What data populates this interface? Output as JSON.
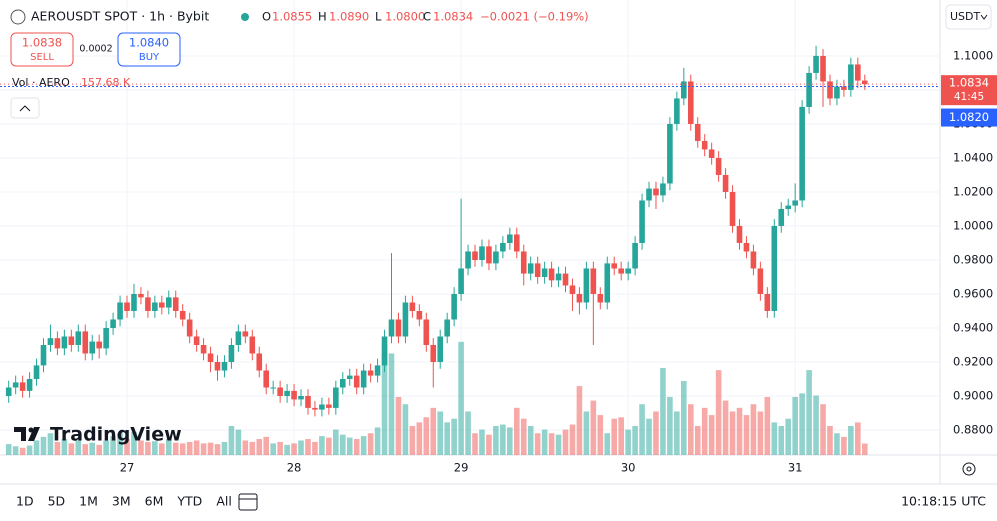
{
  "header": {
    "symbol": "AEROUSDT SPOT · 1h · Bybit",
    "o_label": "O",
    "o": "1.0855",
    "h_label": "H",
    "h": "1.0890",
    "l_label": "L",
    "l": "1.0800",
    "c_label": "C",
    "c": "1.0834",
    "change": "−0.0021 (−0.19%)",
    "sell_price": "1.0838",
    "sell": "SELL",
    "spread": "0.0002",
    "buy_price": "1.0840",
    "buy": "BUY",
    "currency": "USDT",
    "vol_label": "Vol · AERO",
    "vol_value": "157.68 K",
    "logo": "TradingView"
  },
  "chart_data": {
    "type": "candlestick",
    "up_color": "#26a69a",
    "down_color": "#ef5350",
    "ylim": [
      0.8653,
      1.1329
    ],
    "yticks": [
      {
        "value": 1.1,
        "label": "1.1000"
      },
      {
        "value": 1.08,
        "label": "1.0800"
      },
      {
        "value": 1.06,
        "label": "1.0600"
      },
      {
        "value": 1.04,
        "label": "1.0400"
      },
      {
        "value": 1.02,
        "label": "1.0200"
      },
      {
        "value": 1.0,
        "label": "1.0000"
      },
      {
        "value": 0.98,
        "label": "0.9800"
      },
      {
        "value": 0.96,
        "label": "0.9600"
      },
      {
        "value": 0.94,
        "label": "0.9400"
      },
      {
        "value": 0.92,
        "label": "0.9200"
      },
      {
        "value": 0.9,
        "label": "0.9000"
      },
      {
        "value": 0.88,
        "label": "0.8800"
      }
    ],
    "xticks": [
      {
        "value": 17,
        "label": "27"
      },
      {
        "value": 41,
        "label": "28"
      },
      {
        "value": 65,
        "label": "29"
      },
      {
        "value": 89,
        "label": "30"
      },
      {
        "value": 113,
        "label": "31"
      }
    ],
    "grid": true,
    "ohlc": [
      [
        0.9,
        0.909,
        0.896,
        0.905
      ],
      [
        0.905,
        0.912,
        0.901,
        0.908
      ],
      [
        0.908,
        0.912,
        0.899,
        0.903
      ],
      [
        0.903,
        0.914,
        0.899,
        0.91
      ],
      [
        0.91,
        0.922,
        0.906,
        0.918
      ],
      [
        0.918,
        0.934,
        0.914,
        0.93
      ],
      [
        0.93,
        0.942,
        0.926,
        0.934
      ],
      [
        0.934,
        0.938,
        0.924,
        0.928
      ],
      [
        0.928,
        0.939,
        0.924,
        0.935
      ],
      [
        0.935,
        0.939,
        0.926,
        0.93
      ],
      [
        0.93,
        0.942,
        0.926,
        0.938
      ],
      [
        0.938,
        0.942,
        0.921,
        0.925
      ],
      [
        0.925,
        0.936,
        0.921,
        0.932
      ],
      [
        0.932,
        0.936,
        0.922,
        0.928
      ],
      [
        0.928,
        0.944,
        0.924,
        0.94
      ],
      [
        0.94,
        0.949,
        0.936,
        0.945
      ],
      [
        0.945,
        0.959,
        0.941,
        0.955
      ],
      [
        0.955,
        0.959,
        0.946,
        0.95
      ],
      [
        0.95,
        0.966,
        0.946,
        0.96
      ],
      [
        0.96,
        0.964,
        0.954,
        0.958
      ],
      [
        0.958,
        0.962,
        0.946,
        0.95
      ],
      [
        0.95,
        0.959,
        0.946,
        0.955
      ],
      [
        0.955,
        0.959,
        0.948,
        0.952
      ],
      [
        0.952,
        0.962,
        0.948,
        0.958
      ],
      [
        0.958,
        0.962,
        0.946,
        0.95
      ],
      [
        0.95,
        0.954,
        0.941,
        0.945
      ],
      [
        0.945,
        0.949,
        0.931,
        0.935
      ],
      [
        0.935,
        0.939,
        0.926,
        0.93
      ],
      [
        0.93,
        0.934,
        0.921,
        0.925
      ],
      [
        0.925,
        0.929,
        0.914,
        0.92
      ],
      [
        0.92,
        0.924,
        0.909,
        0.915
      ],
      [
        0.915,
        0.924,
        0.911,
        0.92
      ],
      [
        0.92,
        0.934,
        0.916,
        0.93
      ],
      [
        0.93,
        0.942,
        0.926,
        0.938
      ],
      [
        0.938,
        0.942,
        0.931,
        0.935
      ],
      [
        0.935,
        0.939,
        0.921,
        0.925
      ],
      [
        0.925,
        0.929,
        0.911,
        0.915
      ],
      [
        0.915,
        0.919,
        0.901,
        0.905
      ],
      [
        0.905,
        0.909,
        0.901,
        0.905
      ],
      [
        0.905,
        0.909,
        0.896,
        0.9
      ],
      [
        0.9,
        0.907,
        0.896,
        0.903
      ],
      [
        0.903,
        0.907,
        0.894,
        0.898
      ],
      [
        0.898,
        0.904,
        0.894,
        0.9
      ],
      [
        0.9,
        0.904,
        0.889,
        0.893
      ],
      [
        0.893,
        0.897,
        0.888,
        0.892
      ],
      [
        0.892,
        0.899,
        0.888,
        0.895
      ],
      [
        0.895,
        0.899,
        0.889,
        0.893
      ],
      [
        0.893,
        0.909,
        0.889,
        0.905
      ],
      [
        0.905,
        0.914,
        0.901,
        0.91
      ],
      [
        0.91,
        0.916,
        0.906,
        0.912
      ],
      [
        0.912,
        0.916,
        0.901,
        0.905
      ],
      [
        0.905,
        0.919,
        0.901,
        0.915
      ],
      [
        0.915,
        0.919,
        0.908,
        0.912
      ],
      [
        0.912,
        0.922,
        0.908,
        0.918
      ],
      [
        0.918,
        0.939,
        0.914,
        0.935
      ],
      [
        0.935,
        0.984,
        0.931,
        0.945
      ],
      [
        0.945,
        0.949,
        0.931,
        0.935
      ],
      [
        0.935,
        0.959,
        0.931,
        0.955
      ],
      [
        0.955,
        0.959,
        0.946,
        0.95
      ],
      [
        0.95,
        0.954,
        0.941,
        0.945
      ],
      [
        0.945,
        0.949,
        0.926,
        0.93
      ],
      [
        0.93,
        0.934,
        0.905,
        0.92
      ],
      [
        0.92,
        0.939,
        0.916,
        0.935
      ],
      [
        0.935,
        0.949,
        0.931,
        0.945
      ],
      [
        0.945,
        0.964,
        0.941,
        0.96
      ],
      [
        0.96,
        1.016,
        0.956,
        0.975
      ],
      [
        0.975,
        0.989,
        0.971,
        0.985
      ],
      [
        0.985,
        0.989,
        0.976,
        0.98
      ],
      [
        0.98,
        0.992,
        0.976,
        0.988
      ],
      [
        0.988,
        0.992,
        0.974,
        0.978
      ],
      [
        0.978,
        0.989,
        0.974,
        0.985
      ],
      [
        0.985,
        0.994,
        0.981,
        0.99
      ],
      [
        0.99,
        0.999,
        0.986,
        0.995
      ],
      [
        0.995,
        0.999,
        0.981,
        0.985
      ],
      [
        0.985,
        0.989,
        0.965,
        0.972
      ],
      [
        0.972,
        0.982,
        0.968,
        0.978
      ],
      [
        0.978,
        0.982,
        0.966,
        0.97
      ],
      [
        0.97,
        0.979,
        0.966,
        0.975
      ],
      [
        0.975,
        0.979,
        0.964,
        0.968
      ],
      [
        0.968,
        0.976,
        0.964,
        0.972
      ],
      [
        0.972,
        0.976,
        0.961,
        0.965
      ],
      [
        0.965,
        0.969,
        0.95,
        0.96
      ],
      [
        0.96,
        0.964,
        0.948,
        0.955
      ],
      [
        0.955,
        0.979,
        0.951,
        0.975
      ],
      [
        0.975,
        0.979,
        0.93,
        0.96
      ],
      [
        0.96,
        0.964,
        0.951,
        0.955
      ],
      [
        0.955,
        0.982,
        0.951,
        0.978
      ],
      [
        0.978,
        0.982,
        0.971,
        0.975
      ],
      [
        0.975,
        0.979,
        0.968,
        0.972
      ],
      [
        0.972,
        0.979,
        0.968,
        0.975
      ],
      [
        0.975,
        0.994,
        0.971,
        0.99
      ],
      [
        0.99,
        1.019,
        0.986,
        1.015
      ],
      [
        1.015,
        1.026,
        1.011,
        1.022
      ],
      [
        1.022,
        1.026,
        1.01,
        1.018
      ],
      [
        1.018,
        1.029,
        1.014,
        1.025
      ],
      [
        1.025,
        1.064,
        1.021,
        1.06
      ],
      [
        1.06,
        1.079,
        1.056,
        1.075
      ],
      [
        1.075,
        1.093,
        1.071,
        1.085
      ],
      [
        1.085,
        1.089,
        1.056,
        1.06
      ],
      [
        1.06,
        1.064,
        1.046,
        1.05
      ],
      [
        1.05,
        1.054,
        1.041,
        1.045
      ],
      [
        1.045,
        1.049,
        1.036,
        1.04
      ],
      [
        1.04,
        1.044,
        1.026,
        1.03
      ],
      [
        1.03,
        1.034,
        1.016,
        1.02
      ],
      [
        1.02,
        1.024,
        0.996,
        1.0
      ],
      [
        1.0,
        1.004,
        0.986,
        0.99
      ],
      [
        0.99,
        0.994,
        0.981,
        0.985
      ],
      [
        0.985,
        0.989,
        0.971,
        0.975
      ],
      [
        0.975,
        0.979,
        0.956,
        0.96
      ],
      [
        0.96,
        0.964,
        0.946,
        0.95
      ],
      [
        0.95,
        1.004,
        0.946,
        1.0
      ],
      [
        1.0,
        1.014,
        0.996,
        1.01
      ],
      [
        1.01,
        1.016,
        1.006,
        1.012
      ],
      [
        1.012,
        1.025,
        1.008,
        1.015
      ],
      [
        1.015,
        1.074,
        1.011,
        1.07
      ],
      [
        1.07,
        1.094,
        1.066,
        1.09
      ],
      [
        1.09,
        1.106,
        1.086,
        1.1
      ],
      [
        1.1,
        1.104,
        1.07,
        1.085
      ],
      [
        1.085,
        1.089,
        1.071,
        1.075
      ],
      [
        1.075,
        1.086,
        1.071,
        1.082
      ],
      [
        1.082,
        1.086,
        1.076,
        1.08
      ],
      [
        1.08,
        1.099,
        1.076,
        1.095
      ],
      [
        1.095,
        1.099,
        1.081,
        1.0855
      ],
      [
        1.0855,
        1.089,
        1.08,
        1.0834
      ]
    ],
    "volume_ylim": [
      0,
      5500
    ],
    "volume": [
      150,
      120,
      100,
      130,
      200,
      250,
      300,
      180,
      220,
      160,
      200,
      150,
      170,
      140,
      200,
      260,
      300,
      220,
      320,
      200,
      180,
      190,
      160,
      220,
      170,
      160,
      180,
      200,
      160,
      170,
      150,
      180,
      400,
      350,
      200,
      180,
      220,
      250,
      160,
      180,
      140,
      160,
      200,
      220,
      180,
      260,
      240,
      350,
      280,
      240,
      220,
      260,
      300,
      380,
      1500,
      1400,
      800,
      700,
      400,
      450,
      520,
      650,
      600,
      450,
      500,
      1560,
      600,
      300,
      350,
      280,
      400,
      420,
      380,
      650,
      500,
      400,
      300,
      350,
      300,
      280,
      350,
      420,
      950,
      600,
      750,
      550,
      300,
      500,
      520,
      350,
      400,
      700,
      500,
      600,
      1200,
      800,
      600,
      1020,
      700,
      400,
      650,
      550,
      1170,
      750,
      600,
      650,
      550,
      700,
      600,
      800,
      450,
      400,
      500,
      800,
      850,
      1170,
      820,
      700,
      400,
      300,
      250,
      400,
      450,
      157.68
    ],
    "last_price": {
      "value": 1.0834,
      "label": "1.0834",
      "countdown": "41:45"
    },
    "bid_price": {
      "value": 1.082,
      "label": "1.0820"
    }
  },
  "toolbar": {
    "ranges": [
      "1D",
      "5D",
      "1M",
      "3M",
      "6M",
      "YTD",
      "All"
    ],
    "clock": "10:18:15 UTC"
  }
}
